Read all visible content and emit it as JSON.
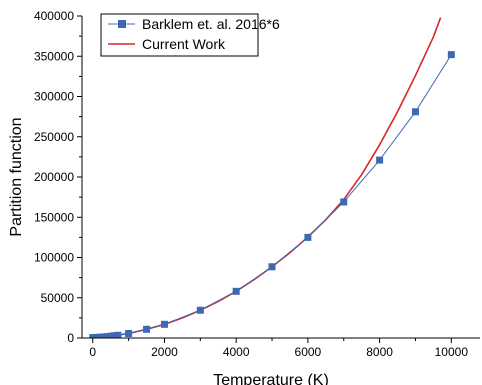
{
  "colors": {
    "barklem": "#3e68b3",
    "current": "#d62728",
    "axis": "#000000"
  },
  "chart_data": {
    "type": "line",
    "title": "",
    "xlabel": "Temperature (K)",
    "ylabel": "Partition function",
    "xlim": [
      -300,
      10800
    ],
    "ylim": [
      0,
      400000
    ],
    "xticks": [
      0,
      2000,
      4000,
      6000,
      8000,
      10000
    ],
    "yticks": [
      0,
      50000,
      100000,
      150000,
      200000,
      250000,
      300000,
      350000,
      400000
    ],
    "grid": false,
    "legend_position": "top-left",
    "series": [
      {
        "name": "Barklem et. al. 2016*6",
        "style": "line+square-markers",
        "color": "#3e68b3",
        "x": [
          1,
          100,
          200,
          300,
          400,
          500,
          600,
          700,
          1000,
          1500,
          2000,
          3000,
          4000,
          5000,
          6000,
          7000,
          8000,
          9000,
          10000
        ],
        "y": [
          500,
          700,
          1000,
          1300,
          1700,
          2200,
          2800,
          3400,
          5600,
          10800,
          17000,
          34500,
          58000,
          88500,
          125000,
          169000,
          221000,
          281000,
          352000
        ]
      },
      {
        "name": "Current Work",
        "style": "line",
        "color": "#d62728",
        "x": [
          1,
          500,
          1000,
          1500,
          2000,
          2500,
          3000,
          3500,
          4000,
          4500,
          5000,
          5500,
          6000,
          6500,
          7000,
          7500,
          8000,
          8500,
          9000,
          9500,
          9700
        ],
        "y": [
          500,
          2200,
          5600,
          10800,
          17000,
          25000,
          34500,
          45500,
          58000,
          72500,
          88500,
          106000,
          125500,
          147000,
          172000,
          203000,
          240000,
          281000,
          326000,
          374000,
          398000
        ]
      }
    ]
  }
}
